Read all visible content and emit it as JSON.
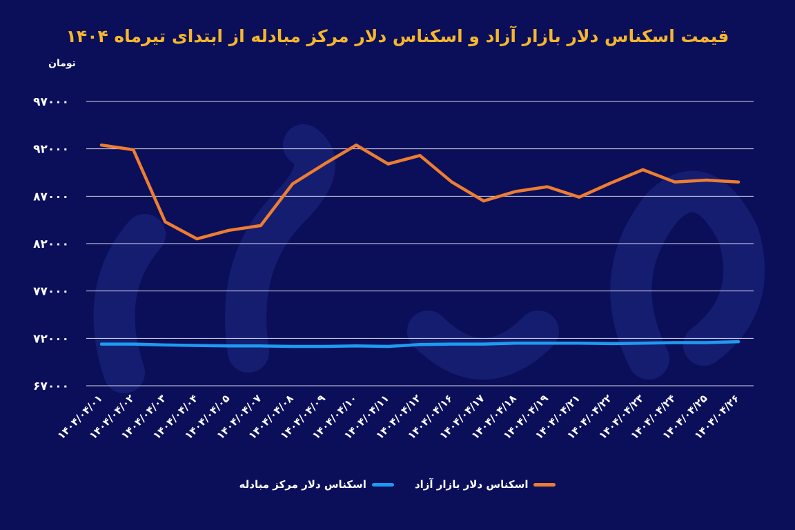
{
  "chart_data": {
    "type": "line",
    "title": "قیمت اسکناس دلار بازار آزاد و اسکناس دلار مرکز مبادله از ابتدای تیرماه ۱۴۰۴",
    "ylabel": "تومان",
    "ylim": [
      67000,
      97000
    ],
    "yticks": [
      97000,
      92000,
      87000,
      82000,
      77000,
      72000,
      67000
    ],
    "ytick_labels": [
      "۹۷۰۰۰",
      "۹۲۰۰۰",
      "۸۷۰۰۰",
      "۸۲۰۰۰",
      "۷۷۰۰۰",
      "۷۲۰۰۰",
      "۶۷۰۰۰"
    ],
    "grid": true,
    "legend_position": "bottom",
    "categories": [
      "۱۴۰۴/۰۴/۰۱",
      "۱۴۰۴/۰۴/۰۲",
      "۱۴۰۴/۰۴/۰۳",
      "۱۴۰۴/۰۴/۰۴",
      "۱۴۰۴/۰۴/۰۵",
      "۱۴۰۴/۰۴/۰۷",
      "۱۴۰۴/۰۴/۰۸",
      "۱۴۰۴/۰۴/۰۹",
      "۱۴۰۴/۰۴/۱۰",
      "۱۴۰۴/۰۴/۱۱",
      "۱۴۰۴/۰۴/۱۲",
      "۱۴۰۴/۰۴/۱۶",
      "۱۴۰۴/۰۴/۱۷",
      "۱۴۰۴/۰۴/۱۸",
      "۱۴۰۴/۰۴/۱۹",
      "۱۴۰۴/۰۴/۲۱",
      "۱۴۰۴/۰۴/۲۲",
      "۱۴۰۴/۰۴/۲۳",
      "۱۴۰۴/۰۴/۲۴",
      "۱۴۰۴/۰۴/۲۵",
      "۱۴۰۴/۰۴/۲۶"
    ],
    "series": [
      {
        "name": "اسکناس دلار بازار آزاد",
        "color": "#ed7d31",
        "values": [
          92400,
          91900,
          84300,
          82500,
          83400,
          83900,
          88300,
          90400,
          92400,
          90400,
          91300,
          88500,
          86500,
          87500,
          88000,
          86900,
          88400,
          89800,
          88500,
          88700,
          88500
        ]
      },
      {
        "name": "اسکناس دلار مرکز مبادله",
        "color": "#1e9bf0",
        "values": [
          71400,
          71400,
          71300,
          71250,
          71200,
          71200,
          71150,
          71150,
          71200,
          71150,
          71350,
          71400,
          71400,
          71500,
          71500,
          71500,
          71450,
          71500,
          71550,
          71550,
          71650
        ]
      }
    ]
  },
  "colors": {
    "background": "#0b0f5a",
    "title": "#f5b62d",
    "grid": "#ffffff",
    "text": "#ffffff"
  }
}
